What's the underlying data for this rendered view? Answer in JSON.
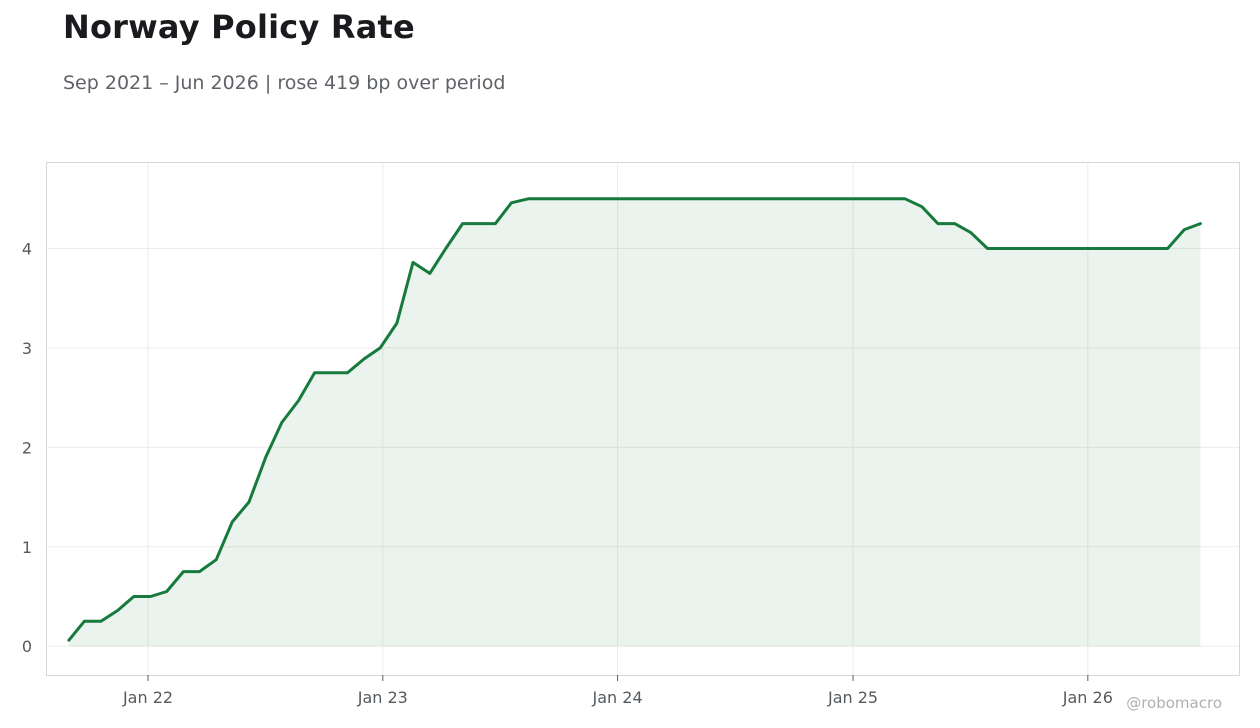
{
  "title": "Norway Policy Rate",
  "subtitle": "Sep 2021 – Jun 2026 | rose 419 bp over period",
  "watermark": "@robomacro",
  "colors": {
    "line": "#177a3c",
    "fill": "#177a3c",
    "grid": "#ececec",
    "frame": "#d6d6d6"
  },
  "chart_data": {
    "type": "area",
    "title": "Norway Policy Rate",
    "subtitle": "Sep 2021 – Jun 2026 | rose 419 bp over period",
    "xlabel": "",
    "ylabel": "",
    "x_ticks": [
      "2022-01-01",
      "2023-01-01",
      "2024-01-01",
      "2025-01-01",
      "2026-01-01"
    ],
    "x_tick_labels": [
      "Jan 22",
      "Jan 23",
      "Jan 24",
      "Jan 25",
      "Jan 26"
    ],
    "y_ticks": [
      0,
      1,
      2,
      3,
      4
    ],
    "xlim": [
      "2021-07-28",
      "2026-08-24"
    ],
    "ylim": [
      -0.29,
      4.86
    ],
    "grid": true,
    "legend": "none",
    "series": [
      {
        "points": [
          [
            "2021-08-31",
            0.06
          ],
          [
            "2021-09-24",
            0.25
          ],
          [
            "2021-10-20",
            0.25
          ],
          [
            "2021-11-15",
            0.36
          ],
          [
            "2021-12-10",
            0.5
          ],
          [
            "2022-01-05",
            0.5
          ],
          [
            "2022-01-30",
            0.55
          ],
          [
            "2022-02-25",
            0.75
          ],
          [
            "2022-03-22",
            0.75
          ],
          [
            "2022-04-17",
            0.87
          ],
          [
            "2022-05-12",
            1.25
          ],
          [
            "2022-06-07",
            1.45
          ],
          [
            "2022-07-03",
            1.9
          ],
          [
            "2022-07-28",
            2.25
          ],
          [
            "2022-08-23",
            2.47
          ],
          [
            "2022-09-17",
            2.75
          ],
          [
            "2022-10-13",
            2.75
          ],
          [
            "2022-11-07",
            2.75
          ],
          [
            "2022-12-03",
            2.89
          ],
          [
            "2022-12-28",
            3.0
          ],
          [
            "2023-01-23",
            3.25
          ],
          [
            "2023-02-17",
            3.86
          ],
          [
            "2023-03-15",
            3.75
          ],
          [
            "2023-04-09",
            4.0
          ],
          [
            "2023-05-05",
            4.25
          ],
          [
            "2023-05-30",
            4.25
          ],
          [
            "2023-06-25",
            4.25
          ],
          [
            "2023-07-20",
            4.46
          ],
          [
            "2023-08-15",
            4.5
          ],
          [
            "2023-09-09",
            4.5
          ],
          [
            "2023-10-05",
            4.5
          ],
          [
            "2023-10-30",
            4.5
          ],
          [
            "2023-11-25",
            4.5
          ],
          [
            "2023-12-20",
            4.5
          ],
          [
            "2024-01-15",
            4.5
          ],
          [
            "2024-02-09",
            4.5
          ],
          [
            "2024-03-06",
            4.5
          ],
          [
            "2024-03-31",
            4.5
          ],
          [
            "2024-04-26",
            4.5
          ],
          [
            "2024-05-21",
            4.5
          ],
          [
            "2024-06-16",
            4.5
          ],
          [
            "2024-07-11",
            4.5
          ],
          [
            "2024-08-06",
            4.5
          ],
          [
            "2024-08-31",
            4.5
          ],
          [
            "2024-09-26",
            4.5
          ],
          [
            "2024-10-21",
            4.5
          ],
          [
            "2024-11-16",
            4.5
          ],
          [
            "2024-12-11",
            4.5
          ],
          [
            "2025-01-06",
            4.5
          ],
          [
            "2025-01-31",
            4.5
          ],
          [
            "2025-02-26",
            4.5
          ],
          [
            "2025-03-23",
            4.5
          ],
          [
            "2025-04-18",
            4.42
          ],
          [
            "2025-05-13",
            4.25
          ],
          [
            "2025-06-08",
            4.25
          ],
          [
            "2025-07-03",
            4.16
          ],
          [
            "2025-07-29",
            4.0
          ],
          [
            "2025-08-23",
            4.0
          ],
          [
            "2025-09-18",
            4.0
          ],
          [
            "2025-10-13",
            4.0
          ],
          [
            "2025-11-08",
            4.0
          ],
          [
            "2025-12-03",
            4.0
          ],
          [
            "2025-12-29",
            4.0
          ],
          [
            "2026-01-23",
            4.0
          ],
          [
            "2026-02-18",
            4.0
          ],
          [
            "2026-03-15",
            4.0
          ],
          [
            "2026-04-10",
            4.0
          ],
          [
            "2026-05-05",
            4.0
          ],
          [
            "2026-05-31",
            4.19
          ],
          [
            "2026-06-25",
            4.25
          ]
        ]
      }
    ]
  }
}
